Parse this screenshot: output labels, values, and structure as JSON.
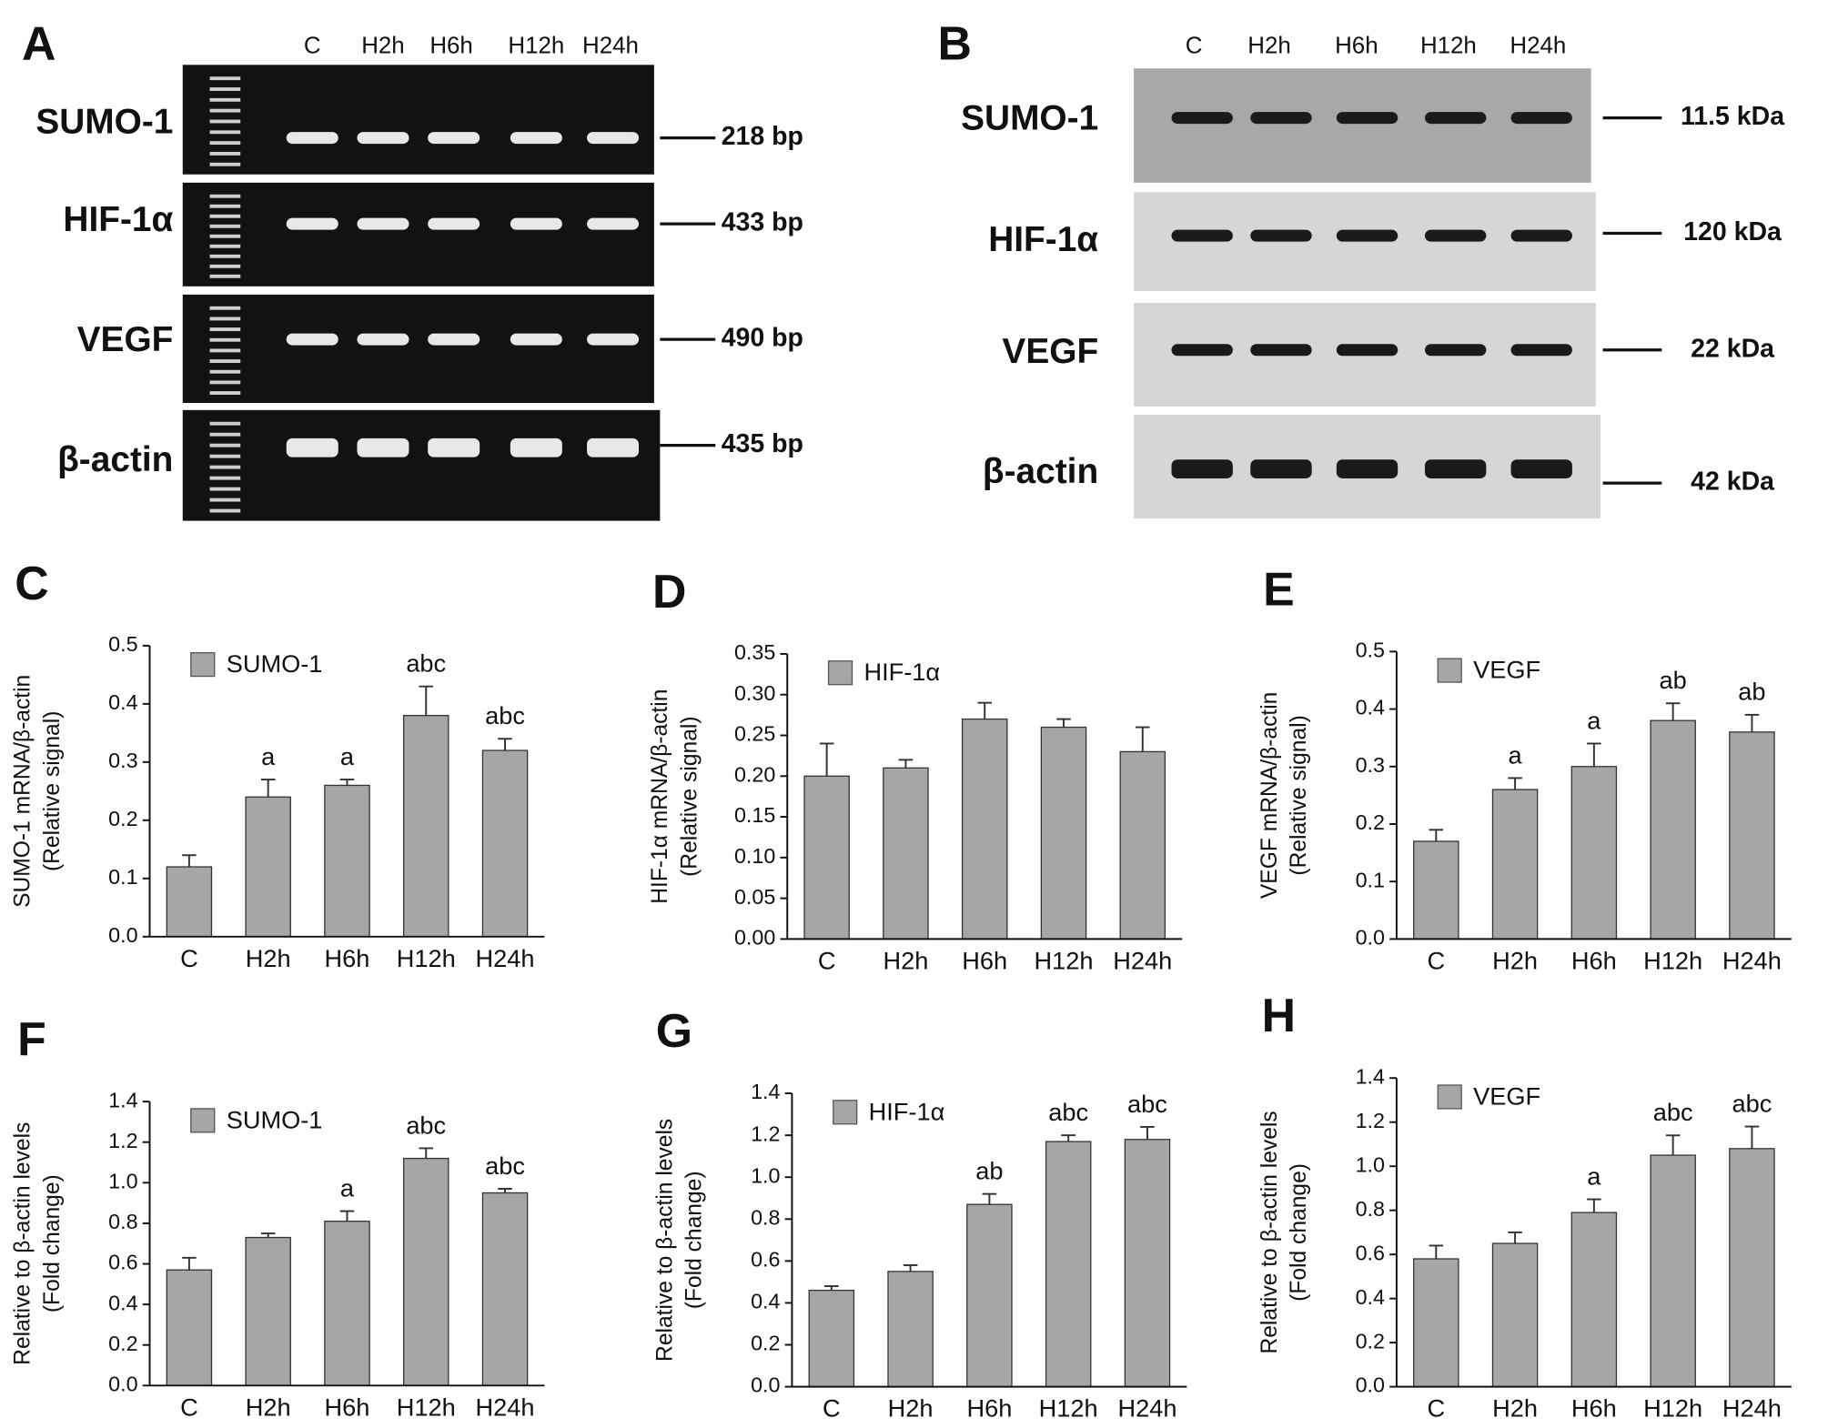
{
  "figure_panels": [
    {
      "letter": "A",
      "lanes": [
        "C",
        "H2h",
        "H6h",
        "H12h",
        "H24h"
      ],
      "rows": [
        {
          "label": "SUMO-1",
          "size": "218 bp"
        },
        {
          "label": "HIF-1α",
          "size": "433 bp"
        },
        {
          "label": "VEGF",
          "size": "490 bp"
        },
        {
          "label": "β-actin",
          "size": "435 bp"
        }
      ]
    },
    {
      "letter": "B",
      "lanes": [
        "C",
        "H2h",
        "H6h",
        "H12h",
        "H24h"
      ],
      "rows": [
        {
          "label": "SUMO-1",
          "size": "11.5 kDa"
        },
        {
          "label": "HIF-1α",
          "size": "120 kDa"
        },
        {
          "label": "VEGF",
          "size": "22 kDa"
        },
        {
          "label": "β-actin",
          "size": "42 kDa"
        }
      ]
    }
  ],
  "chart_data": [
    {
      "type": "bar",
      "letter": "C",
      "ylabel": [
        "SUMO-1 mRNA/β-actin",
        "(Relative signal)"
      ],
      "categories": [
        "C",
        "H2h",
        "H6h",
        "H12h",
        "H24h"
      ],
      "series": [
        {
          "name": "SUMO-1",
          "color": "#a6a6a6",
          "values": [
            0.12,
            0.24,
            0.26,
            0.38,
            0.32
          ],
          "errors": [
            0.02,
            0.03,
            0.01,
            0.05,
            0.02
          ],
          "annotations": [
            null,
            "a",
            "a",
            "abc",
            "abc"
          ]
        }
      ],
      "ylim": [
        0,
        0.5
      ],
      "yticks": [
        {
          "value": 0,
          "label": "0.0"
        },
        0.1,
        0.2,
        0.3,
        0.4,
        0.5
      ]
    },
    {
      "type": "bar",
      "letter": "D",
      "ylabel": [
        "HIF-1α mRNA/β-actin",
        "(Relative signal)"
      ],
      "categories": [
        "C",
        "H2h",
        "H6h",
        "H12h",
        "H24h"
      ],
      "series": [
        {
          "name": "HIF-1α",
          "color": "#a6a6a6",
          "values": [
            0.2,
            0.21,
            0.27,
            0.26,
            0.23
          ],
          "errors": [
            0.04,
            0.01,
            0.02,
            0.01,
            0.03
          ]
        }
      ],
      "ylim": [
        0,
        0.35
      ],
      "yticks": [
        {
          "value": 0,
          "label": "0.00"
        },
        0.05,
        {
          "value": 0.1,
          "label": "0.10"
        },
        0.15,
        {
          "value": 0.2,
          "label": "0.20"
        },
        0.25,
        {
          "value": 0.3,
          "label": "0.30"
        },
        0.35
      ]
    },
    {
      "type": "bar",
      "letter": "E",
      "ylabel": [
        "VEGF mRNA/β-actin",
        "(Relative signal)"
      ],
      "categories": [
        "C",
        "H2h",
        "H6h",
        "H12h",
        "H24h"
      ],
      "series": [
        {
          "name": "VEGF",
          "color": "#a6a6a6",
          "values": [
            0.17,
            0.26,
            0.3,
            0.38,
            0.36
          ],
          "errors": [
            0.02,
            0.02,
            0.04,
            0.03,
            0.03
          ],
          "annotations": [
            null,
            "a",
            "a",
            "ab",
            "ab"
          ]
        }
      ],
      "ylim": [
        0,
        0.5
      ],
      "yticks": [
        {
          "value": 0,
          "label": "0.0"
        },
        0.1,
        0.2,
        0.3,
        0.4,
        0.5
      ]
    },
    {
      "type": "bar",
      "letter": "F",
      "ylabel": [
        "Relative to β-actin levels",
        "(Fold change)"
      ],
      "categories": [
        "C",
        "H2h",
        "H6h",
        "H12h",
        "H24h"
      ],
      "series": [
        {
          "name": "SUMO-1",
          "color": "#a6a6a6",
          "values": [
            0.57,
            0.73,
            0.81,
            1.12,
            0.95
          ],
          "errors": [
            0.06,
            0.02,
            0.05,
            0.05,
            0.02
          ],
          "annotations": [
            null,
            null,
            "a",
            "abc",
            "abc"
          ]
        }
      ],
      "ylim": [
        0,
        1.4
      ],
      "yticks": [
        {
          "value": 0,
          "label": "0.0"
        },
        0.2,
        0.4,
        0.6,
        0.8,
        {
          "value": 1,
          "label": "1.0"
        },
        1.2,
        1.4
      ]
    },
    {
      "type": "bar",
      "letter": "G",
      "ylabel": [
        "Relative to β-actin levels",
        "(Fold change)"
      ],
      "categories": [
        "C",
        "H2h",
        "H6h",
        "H12h",
        "H24h"
      ],
      "series": [
        {
          "name": "HIF-1α",
          "color": "#a6a6a6",
          "values": [
            0.46,
            0.55,
            0.87,
            1.17,
            1.18
          ],
          "errors": [
            0.02,
            0.03,
            0.05,
            0.03,
            0.06
          ],
          "annotations": [
            null,
            null,
            "ab",
            "abc",
            "abc"
          ]
        }
      ],
      "ylim": [
        0,
        1.4
      ],
      "yticks": [
        {
          "value": 0,
          "label": "0.0"
        },
        0.2,
        0.4,
        0.6,
        0.8,
        {
          "value": 1,
          "label": "1.0"
        },
        1.2,
        1.4
      ]
    },
    {
      "type": "bar",
      "letter": "H",
      "ylabel": [
        "Relative to β-actin levels",
        "(Fold change)"
      ],
      "categories": [
        "C",
        "H2h",
        "H6h",
        "H12h",
        "H24h"
      ],
      "series": [
        {
          "name": "VEGF",
          "color": "#a6a6a6",
          "values": [
            0.58,
            0.65,
            0.79,
            1.05,
            1.08
          ],
          "errors": [
            0.06,
            0.05,
            0.06,
            0.09,
            0.1
          ],
          "annotations": [
            null,
            null,
            "a",
            "abc",
            "abc"
          ]
        }
      ],
      "ylim": [
        0,
        1.4
      ],
      "yticks": [
        {
          "value": 0,
          "label": "0.0"
        },
        0.2,
        0.4,
        0.6,
        0.8,
        {
          "value": 1,
          "label": "1.0"
        },
        1.2,
        1.4
      ]
    }
  ]
}
